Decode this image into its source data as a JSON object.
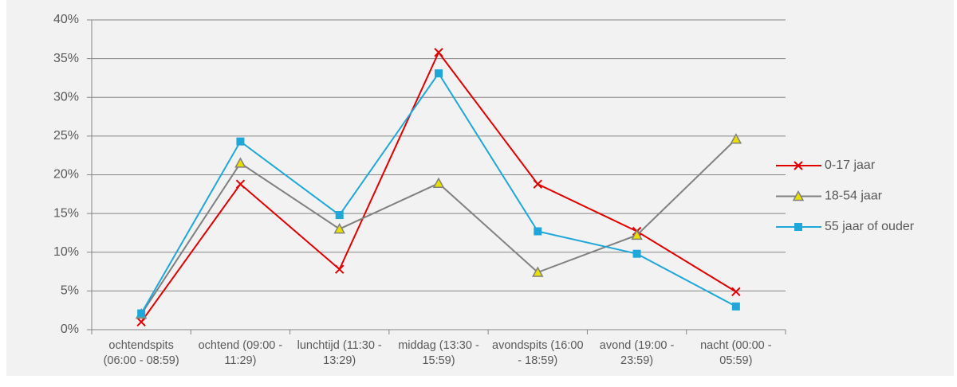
{
  "chart_data": {
    "type": "line",
    "categories": [
      "ochtendspits (06:00 - 08:59)",
      "ochtend (09:00 - 11:29)",
      "lunchtijd (11:30 - 13:29)",
      "middag (13:30 - 15:59)",
      "avondspits (16:00 - 18:59)",
      "avond (19:00 - 23:59)",
      "nacht (00:00 - 05:59)"
    ],
    "series": [
      {
        "name": "0-17 jaar",
        "color": "#e00000",
        "marker": "x",
        "values": [
          1.0,
          18.8,
          7.8,
          35.8,
          18.8,
          12.7,
          4.9
        ]
      },
      {
        "name": "18-54 jaar",
        "color": "#808080",
        "marker": "triangle",
        "marker_fill": "#e8e000",
        "values": [
          2.0,
          21.5,
          13.0,
          18.9,
          7.4,
          12.2,
          24.6
        ]
      },
      {
        "name": "55 jaar of ouder",
        "color": "#1ea7d8",
        "marker": "square",
        "values": [
          2.1,
          24.3,
          14.8,
          33.1,
          12.7,
          9.8,
          3.0
        ]
      }
    ],
    "ylim": [
      0,
      40
    ],
    "yticks": [
      {
        "value": 0,
        "label": "0%"
      },
      {
        "value": 5,
        "label": "5%"
      },
      {
        "value": 10,
        "label": "10%"
      },
      {
        "value": 15,
        "label": "15%"
      },
      {
        "value": 20,
        "label": "20%"
      },
      {
        "value": 25,
        "label": "25%"
      },
      {
        "value": 30,
        "label": "30%"
      },
      {
        "value": 35,
        "label": "35%"
      },
      {
        "value": 40,
        "label": "40%"
      }
    ],
    "grid": true,
    "legend": "right"
  }
}
